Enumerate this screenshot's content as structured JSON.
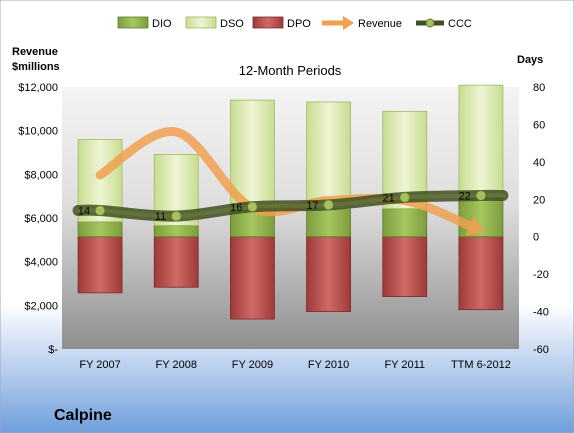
{
  "company": "Calpine",
  "chart_data": {
    "type": "bar",
    "title": "12-Month Periods",
    "left_axis_label_line1": "Revenue",
    "left_axis_label_line2": "$millions",
    "right_axis_label": "Days",
    "categories": [
      "FY 2007",
      "FY 2008",
      "FY 2009",
      "FY 2010",
      "FY 2011",
      "TTM 6-2012"
    ],
    "left_axis": {
      "min": 0,
      "max": 12000,
      "ticks": [
        0,
        2000,
        4000,
        6000,
        8000,
        10000,
        12000
      ],
      "tick_labels": [
        "$-",
        "$2,000",
        "$4,000",
        "$6,000",
        "$8,000",
        "$10,000",
        "$12,000"
      ]
    },
    "right_axis": {
      "min": -60,
      "max": 80,
      "ticks": [
        -60,
        -40,
        -20,
        0,
        20,
        40,
        60,
        80
      ],
      "tick_labels": [
        "-60",
        "-40",
        "-20",
        "0",
        "20",
        "40",
        "60",
        "80"
      ]
    },
    "legend_position": "top",
    "series": [
      {
        "name": "DIO",
        "axis": "right",
        "kind": "stacked-bar",
        "values": [
          8,
          6,
          14,
          15,
          15,
          21
        ],
        "color": "#8fb04a"
      },
      {
        "name": "DSO",
        "axis": "right",
        "kind": "stacked-bar",
        "values": [
          44,
          38,
          59,
          57,
          52,
          60
        ],
        "color": "#d8e8a8"
      },
      {
        "name": "DPO",
        "axis": "right",
        "kind": "negative-bar",
        "values": [
          -30,
          -27,
          -44,
          -40,
          -32,
          -39
        ],
        "color": "#c0504d"
      },
      {
        "name": "Revenue",
        "axis": "left",
        "kind": "arrow-line",
        "values": [
          7970,
          9940,
          6460,
          6800,
          6800,
          5450
        ],
        "color": "#f0a050"
      },
      {
        "name": "CCC",
        "axis": "right",
        "kind": "line",
        "values": [
          14,
          11,
          16,
          17,
          21,
          22
        ],
        "labels": [
          "14",
          "11",
          "16",
          "17",
          "21",
          "22"
        ],
        "color": "#4a5a2a"
      }
    ]
  }
}
